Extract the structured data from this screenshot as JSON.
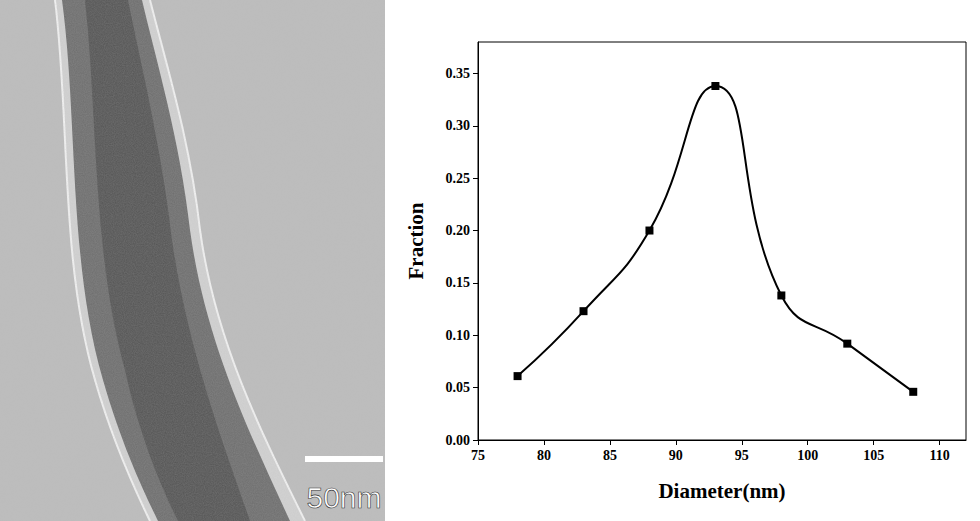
{
  "chart_data": {
    "type": "line",
    "x": [
      78,
      83,
      88,
      93,
      98,
      103,
      108
    ],
    "values": [
      0.061,
      0.123,
      0.2,
      0.338,
      0.138,
      0.092,
      0.046
    ],
    "color": "#000000",
    "marker": "square",
    "line_style": "solid",
    "x_label": "Diameter(nm)",
    "y_label": "Fraction",
    "xlim": [
      75,
      112
    ],
    "xticks": [
      75,
      80,
      85,
      90,
      95,
      100,
      105,
      110
    ],
    "ylim": [
      0,
      0.38
    ],
    "yticks": [
      {
        "value": 0,
        "label": "0.00"
      },
      {
        "value": 0.05,
        "label": "0.05"
      },
      {
        "value": 0.1,
        "label": "0.10"
      },
      {
        "value": 0.15,
        "label": "0.15"
      },
      {
        "value": 0.2,
        "label": "0.20"
      },
      {
        "value": 0.25,
        "label": "0.25"
      },
      {
        "value": 0.3,
        "label": "0.30"
      },
      {
        "value": 0.35,
        "label": "0.35"
      }
    ],
    "grid": false
  },
  "image_panel": {
    "scale_bar_label": "50nm"
  }
}
